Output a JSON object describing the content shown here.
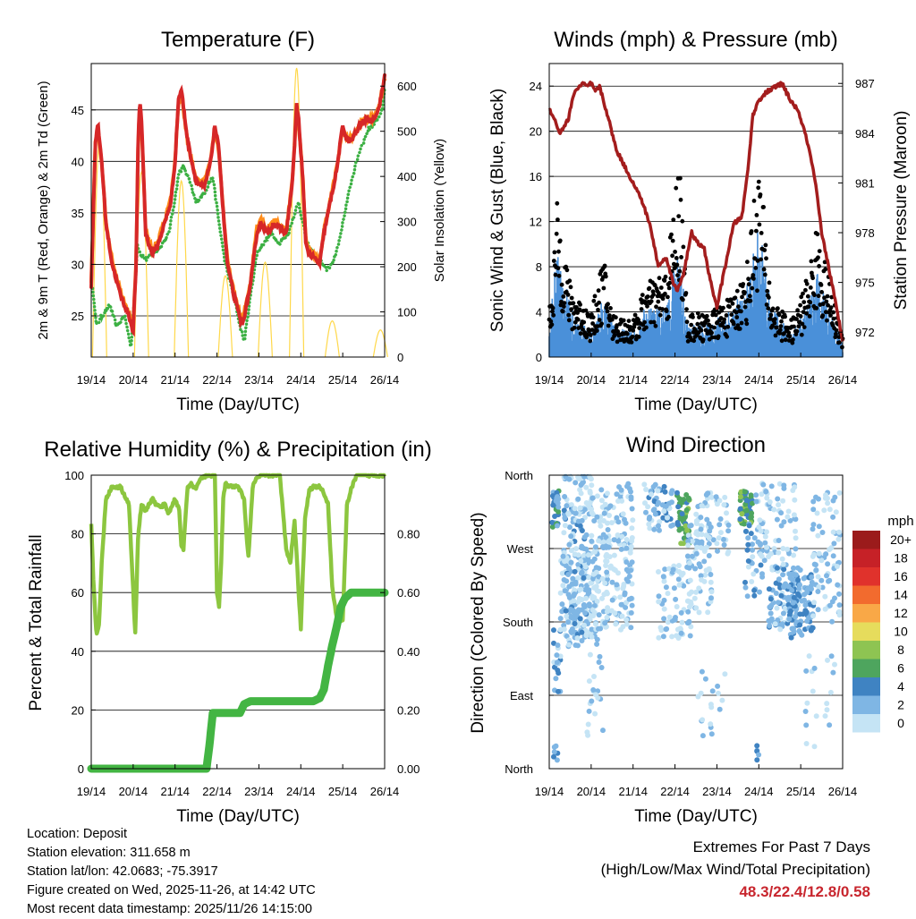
{
  "chart_data": [
    {
      "type": "line",
      "title": "Temperature (F)",
      "xlabel": "Time (Day/UTC)",
      "ylabel": "2m & 9m T (Red, Orange) & 2m Td (Green)",
      "y2label": "Solar Insolation (Yellow)",
      "x_ticks": [
        "19/14",
        "20/14",
        "21/14",
        "22/14",
        "23/14",
        "24/14",
        "25/14",
        "26/14"
      ],
      "ylim": [
        21,
        49.5
      ],
      "y_ticks": [
        25,
        30,
        35,
        40,
        45
      ],
      "y2lim": [
        0,
        650
      ],
      "y2_ticks": [
        0,
        100,
        200,
        300,
        400,
        500,
        600
      ],
      "series": [
        {
          "name": "2m T",
          "color": "#d62728",
          "x": [
            0,
            0.05,
            0.1,
            0.16,
            0.25,
            0.35,
            0.5,
            0.7,
            0.9,
            1.0,
            1.07,
            1.12,
            1.16,
            1.2,
            1.3,
            1.45,
            1.6,
            1.75,
            1.9,
            2.0,
            2.08,
            2.15,
            2.3,
            2.5,
            2.7,
            2.85,
            2.95,
            3.05,
            3.15,
            3.25,
            3.4,
            3.6,
            3.8,
            3.95,
            4.05,
            4.2,
            4.35,
            4.5,
            4.65,
            4.8,
            4.9,
            4.95,
            5.05,
            5.12,
            5.2,
            5.35,
            5.45,
            5.55,
            5.7,
            5.85,
            6.0,
            6.1,
            6.2,
            6.35,
            6.5,
            6.7,
            6.85,
            6.95,
            7.0
          ],
          "values": [
            28,
            35,
            42,
            43.5,
            40,
            34,
            30,
            27,
            25,
            23.5,
            30,
            42,
            46,
            44,
            33,
            31,
            32,
            34,
            36,
            40,
            46,
            47,
            42,
            38,
            37.5,
            40,
            43.5,
            41,
            35,
            30,
            27,
            24,
            28,
            33,
            34,
            33,
            34,
            33.5,
            33,
            38,
            45.5,
            44,
            38,
            32,
            31,
            30.5,
            30,
            33,
            36,
            39,
            43.5,
            42,
            42,
            43,
            44,
            44,
            45,
            47,
            48.3
          ]
        },
        {
          "name": "9m T",
          "color": "#ff8c1a",
          "x": [
            0,
            0.05,
            0.1,
            0.16,
            0.25,
            0.35,
            0.5,
            0.7,
            0.9,
            1.0,
            1.07,
            1.12,
            1.16,
            1.2,
            1.3,
            1.45,
            1.6,
            1.75,
            1.9,
            2.0,
            2.08,
            2.15,
            2.3,
            2.5,
            2.7,
            2.85,
            2.95,
            3.05,
            3.15,
            3.25,
            3.4,
            3.6,
            3.8,
            3.95,
            4.05,
            4.2,
            4.35,
            4.5,
            4.65,
            4.8,
            4.9,
            4.95,
            5.05,
            5.12,
            5.2,
            5.35,
            5.45,
            5.55,
            5.7,
            5.85,
            6.0,
            6.1,
            6.2,
            6.35,
            6.5,
            6.7,
            6.85,
            6.95,
            7.0
          ],
          "values": [
            28.3,
            35.3,
            41.8,
            43,
            39.8,
            34.2,
            30.4,
            27.4,
            25.3,
            23.8,
            30.2,
            41.5,
            45.5,
            43.5,
            33.2,
            31.4,
            32.3,
            34.3,
            36.3,
            40.2,
            45.5,
            46.5,
            41.8,
            38.2,
            37.8,
            40.1,
            43.1,
            40.8,
            35.2,
            30.3,
            27.4,
            24.4,
            28.3,
            33.6,
            34.5,
            33.4,
            34.3,
            33.8,
            33.3,
            38.2,
            45,
            43.6,
            38.2,
            32.3,
            31.3,
            30.8,
            30.3,
            33.3,
            36.2,
            39.2,
            43.2,
            42.2,
            42.2,
            43.1,
            44.1,
            44.1,
            45.1,
            47,
            48
          ]
        },
        {
          "name": "2m Td",
          "color": "#3cb043",
          "x": [
            0,
            0.06,
            0.12,
            0.25,
            0.45,
            0.6,
            0.8,
            0.95,
            1.05,
            1.1,
            1.18,
            1.3,
            1.5,
            1.7,
            1.85,
            1.98,
            2.1,
            2.2,
            2.35,
            2.5,
            2.7,
            2.9,
            3.05,
            3.2,
            3.4,
            3.55,
            3.65,
            3.8,
            3.95,
            4.1,
            4.3,
            4.5,
            4.7,
            4.85,
            4.95,
            5.05,
            5.15,
            5.3,
            5.45,
            5.6,
            5.75,
            5.9,
            6.05,
            6.2,
            6.4,
            6.6,
            6.8,
            6.95,
            7.0
          ],
          "values": [
            28,
            27,
            24,
            25,
            26,
            24,
            25,
            22,
            28,
            32,
            31,
            30.5,
            31,
            32,
            33,
            36,
            39,
            39.5,
            38,
            36,
            37,
            38.5,
            34,
            30,
            27,
            24,
            22.5,
            27,
            31,
            32,
            33,
            32,
            33,
            35,
            36,
            34,
            32,
            31,
            30.5,
            29.5,
            30,
            32,
            35,
            38,
            41,
            43,
            44,
            45,
            47
          ]
        }
      ],
      "solar_insolation": {
        "name": "Solar Insolation",
        "color": "#ffd84a",
        "peaks": [
          {
            "x": 0.2,
            "value": 480
          },
          {
            "x": 1.2,
            "value": 410
          },
          {
            "x": 2.15,
            "value": 390
          },
          {
            "x": 3.2,
            "value": 180
          },
          {
            "x": 4.15,
            "value": 210
          },
          {
            "x": 4.9,
            "value": 640
          },
          {
            "x": 5.75,
            "value": 80
          },
          {
            "x": 6.9,
            "value": 60
          }
        ]
      }
    },
    {
      "type": "scatter",
      "title": "Winds (mph) & Pressure (mb)",
      "xlabel": "Time (Day/UTC)",
      "ylabel": "Sonic Wind & Gust (Blue, Black)",
      "y2label": "Station Pressure (Maroon)",
      "x_ticks": [
        "19/14",
        "20/14",
        "21/14",
        "22/14",
        "23/14",
        "24/14",
        "25/14",
        "26/14"
      ],
      "ylim": [
        0,
        26
      ],
      "y_ticks": [
        0,
        4,
        8,
        12,
        16,
        20,
        24
      ],
      "y2lim": [
        970.5,
        988.2
      ],
      "y2_ticks": [
        972,
        975,
        978,
        981,
        984,
        987
      ],
      "wind_envelope": {
        "x": [
          0,
          0.2,
          0.5,
          1.0,
          1.3,
          1.5,
          2.0,
          2.3,
          2.8,
          3.1,
          3.3,
          3.8,
          4.3,
          4.7,
          5.0,
          5.3,
          5.6,
          5.8,
          6.1,
          6.4,
          6.7,
          6.9,
          7.0
        ],
        "values": [
          2,
          7,
          3,
          1.5,
          4,
          2,
          1.5,
          3,
          3,
          7,
          2,
          2,
          3,
          4,
          8,
          3,
          2,
          1.5,
          3,
          5,
          3,
          1.5,
          1
        ]
      },
      "gust_envelope": {
        "x": [
          0,
          0.2,
          0.5,
          1.0,
          1.3,
          1.5,
          2.0,
          2.3,
          2.8,
          3.1,
          3.3,
          3.8,
          4.3,
          4.7,
          5.0,
          5.3,
          5.6,
          5.8,
          6.1,
          6.4,
          6.7,
          6.9,
          7.0
        ],
        "values": [
          3,
          11,
          5,
          3,
          7,
          3,
          2.5,
          5,
          6,
          14,
          3,
          3,
          4,
          6,
          14,
          4,
          3,
          2.5,
          5,
          9,
          5,
          2.5,
          1.5
        ]
      },
      "pressure": {
        "name": "Station Pressure",
        "color": "#a31d1d",
        "x": [
          0,
          0.1,
          0.25,
          0.45,
          0.6,
          0.8,
          0.9,
          1.0,
          1.1,
          1.2,
          1.4,
          1.6,
          1.8,
          2.0,
          2.2,
          2.4,
          2.6,
          2.8,
          2.95,
          3.05,
          3.2,
          3.4,
          3.5,
          3.7,
          3.85,
          4.0,
          4.2,
          4.4,
          4.6,
          4.75,
          4.85,
          5.0,
          5.2,
          5.4,
          5.55,
          5.65,
          5.75,
          5.9,
          6.05,
          6.2,
          6.35,
          6.5,
          6.7,
          6.85,
          7.0
        ],
        "values": [
          985.5,
          985,
          984,
          984.8,
          986.5,
          987,
          986.8,
          987,
          986.5,
          986.8,
          985,
          983,
          982,
          981,
          980,
          978.5,
          976,
          976.5,
          975,
          974.5,
          975.5,
          978,
          977.5,
          977,
          975,
          973.5,
          976,
          978.5,
          979,
          982,
          985,
          986,
          986.5,
          986.8,
          987,
          986.5,
          986,
          985.5,
          984.5,
          983,
          981,
          978,
          975.5,
          973.5,
          971.5
        ]
      }
    },
    {
      "type": "line",
      "title": "Relative Humidity (%) & Precipitation (in)",
      "xlabel": "Time (Day/UTC)",
      "ylabel": "Percent & Total Rainfall",
      "x_ticks": [
        "19/14",
        "20/14",
        "21/14",
        "22/14",
        "23/14",
        "24/14",
        "25/14",
        "26/14"
      ],
      "ylim": [
        0,
        100
      ],
      "y_ticks": [
        0,
        20,
        40,
        60,
        80,
        100
      ],
      "y2lim": [
        0,
        1.0
      ],
      "y2_ticks": [
        "0.00",
        "0.20",
        "0.40",
        "0.60",
        "0.80"
      ],
      "series": [
        {
          "name": "Relative Humidity",
          "color": "#8cc63f",
          "x": [
            0,
            0.05,
            0.12,
            0.18,
            0.25,
            0.35,
            0.5,
            0.7,
            0.9,
            1.05,
            1.12,
            1.2,
            1.3,
            1.45,
            1.55,
            1.65,
            1.75,
            1.85,
            2.0,
            2.1,
            2.15,
            2.2,
            2.3,
            2.4,
            2.5,
            2.6,
            2.8,
            2.95,
            3.0,
            3.05,
            3.1,
            3.15,
            3.2,
            3.3,
            3.5,
            3.65,
            3.7,
            3.75,
            3.85,
            3.95,
            4.05,
            4.25,
            4.5,
            4.65,
            4.75,
            4.85,
            4.95,
            5.0,
            5.1,
            5.2,
            5.3,
            5.45,
            5.55,
            5.65,
            5.75,
            5.85,
            6.0,
            6.1,
            6.2,
            6.3,
            6.35,
            6.5,
            6.7,
            6.9,
            7.0
          ],
          "values": [
            84,
            65,
            46,
            48,
            70,
            92,
            96,
            96,
            90,
            46,
            80,
            90,
            88,
            92,
            90,
            89,
            90,
            87,
            92,
            88,
            76,
            75,
            96,
            97,
            95,
            99,
            100,
            100,
            60,
            55,
            70,
            92,
            97,
            96,
            96,
            92,
            80,
            72,
            96,
            99,
            100,
            100,
            100,
            75,
            70,
            85,
            60,
            48,
            85,
            95,
            96,
            96,
            94,
            90,
            62,
            52,
            50,
            90,
            95,
            99,
            100,
            100,
            100,
            100,
            100
          ]
        },
        {
          "name": "Total Rainfall",
          "color": "#43b543",
          "axis": "y2",
          "x": [
            0,
            1.0,
            2.0,
            2.75,
            2.82,
            2.9,
            3.0,
            3.3,
            3.55,
            3.65,
            3.8,
            3.95,
            4.2,
            4.5,
            4.8,
            5.0,
            5.3,
            5.45,
            5.55,
            5.65,
            5.75,
            5.85,
            5.95,
            6.05,
            6.2,
            6.35,
            6.5,
            6.7,
            6.8,
            6.9,
            7.0
          ],
          "values": [
            0,
            0,
            0,
            0,
            0.08,
            0.19,
            0.19,
            0.19,
            0.19,
            0.22,
            0.23,
            0.23,
            0.23,
            0.23,
            0.23,
            0.23,
            0.23,
            0.24,
            0.27,
            0.35,
            0.42,
            0.48,
            0.55,
            0.58,
            0.6,
            0.6,
            0.6,
            0.6,
            0.6,
            0.6,
            0.6
          ]
        }
      ]
    },
    {
      "type": "scatter",
      "title": "Wind Direction",
      "xlabel": "Time (Day/UTC)",
      "ylabel": "Direction (Colored By Speed)",
      "x_ticks": [
        "19/14",
        "20/14",
        "21/14",
        "22/14",
        "23/14",
        "24/14",
        "25/14",
        "26/14"
      ],
      "direction_ticks": [
        "North",
        "West",
        "South",
        "East",
        "North"
      ],
      "speed_legend": {
        "title": "mph",
        "labels": [
          "20+",
          "18",
          "16",
          "14",
          "12",
          "10",
          "8",
          "6",
          "4",
          "2",
          "0"
        ],
        "colors": [
          "#9b1b1b",
          "#c62127",
          "#e0322c",
          "#f26b2e",
          "#f9a847",
          "#e6dc5c",
          "#8ec452",
          "#4ea55e",
          "#3f83c2",
          "#7fb6e4",
          "#c5e4f5"
        ]
      }
    }
  ],
  "station_info": {
    "location": "Location: Deposit",
    "elevation": "Station elevation: 311.658 m",
    "latlon": "Station lat/lon: 42.0683; -75.3917",
    "created": "Figure created on Wed, 2025-11-26, at 14:42 UTC",
    "recent": "Most recent data timestamp: 2025/11/26 14:15:00"
  },
  "extremes": {
    "title": "Extremes For Past 7 Days",
    "subtitle": "(High/Low/Max Wind/Total Precipitation)",
    "values": "48.3/22.4/12.8/0.58"
  }
}
